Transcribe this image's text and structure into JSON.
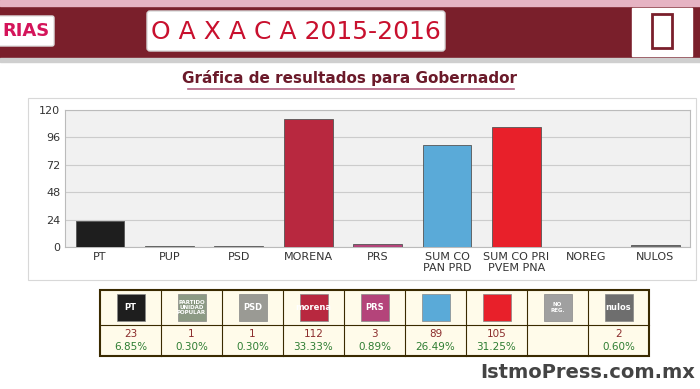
{
  "header": {
    "left_text": "RIAS",
    "banner": "O A X A C A 2015-2016"
  },
  "chart_data": {
    "type": "bar",
    "title": "Gráfica de resultados para Gobernador",
    "categories": [
      "PT",
      "PUP",
      "PSD",
      "MORENA",
      "PRS",
      "SUM CO PAN PRD",
      "SUM CO PRI PVEM PNA",
      "NOREG",
      "NULOS"
    ],
    "values": [
      23,
      1,
      1,
      112,
      3,
      89,
      105,
      0,
      2
    ],
    "colors": [
      "#1e1e1e",
      "#8c9a84",
      "#9a9a94",
      "#b8283f",
      "#b4447a",
      "#5aaad8",
      "#e8202a",
      "#a0a0a0",
      "#6e6e6e"
    ],
    "ylim": [
      0,
      120
    ],
    "yticks": [
      0,
      24,
      48,
      72,
      96,
      120
    ],
    "grid": true
  },
  "table": {
    "icons": [
      "PT",
      "PARTIDO UNIDAD POPULAR",
      "PSD",
      "morena",
      "PRS",
      null,
      null,
      "NO REG.",
      "nulos"
    ],
    "votes": [
      "23",
      "1",
      "1",
      "112",
      "3",
      "89",
      "105",
      null,
      "2"
    ],
    "percentages": [
      "6.85%",
      "0.30%",
      "0.30%",
      "33.33%",
      "0.89%",
      "26.49%",
      "31.25%",
      null,
      "0.60%"
    ]
  },
  "watermark": "IstmoPress.com.mx"
}
